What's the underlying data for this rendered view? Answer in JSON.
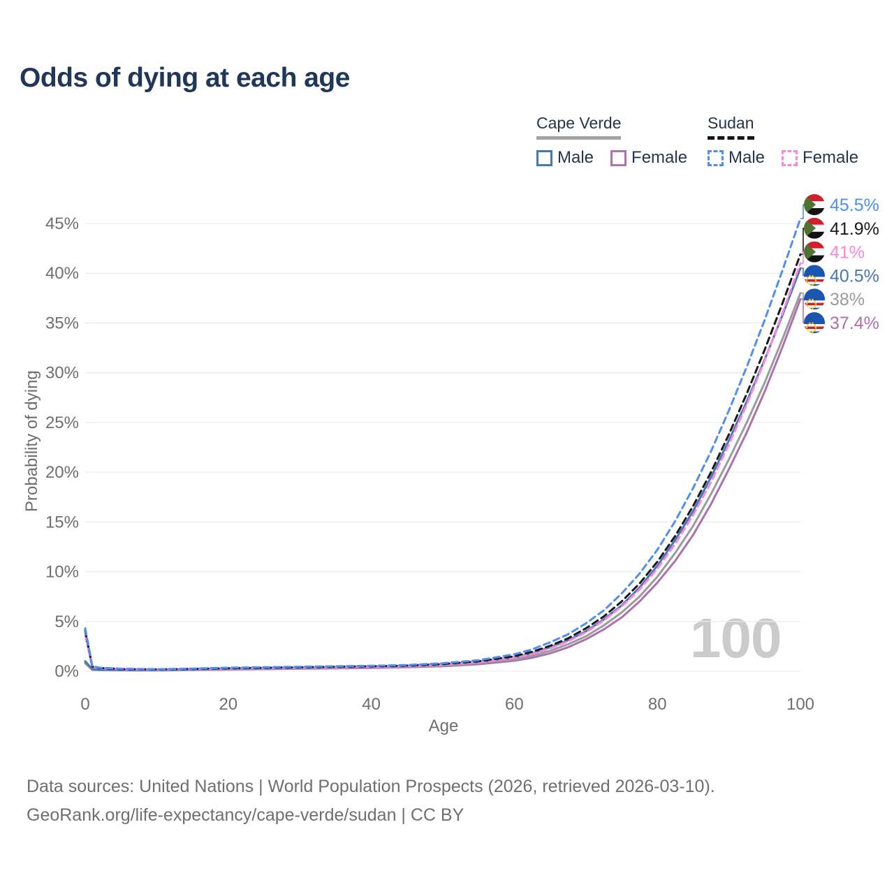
{
  "title": "Odds of dying at each age",
  "legend": {
    "groups": [
      {
        "label": "Cape Verde",
        "style": "solid",
        "underline_color": "#A3A3A3",
        "items": [
          {
            "label": "Male",
            "color": "#4577B3"
          },
          {
            "label": "Female",
            "color": "#AE74B0"
          }
        ]
      },
      {
        "label": "Sudan",
        "style": "dashed",
        "underline_color": "#141414",
        "items": [
          {
            "label": "Male",
            "color": "#4E8EF5"
          },
          {
            "label": "Female",
            "color": "#F985E0"
          }
        ]
      }
    ]
  },
  "chart_data": {
    "type": "line",
    "title": "Odds of dying at each age",
    "xlabel": "Age",
    "ylabel": "Probability of dying",
    "watermark": "100",
    "xlim": [
      0,
      100
    ],
    "ylim": [
      0,
      47
    ],
    "grid": true,
    "x_ticks": [
      0,
      20,
      40,
      60,
      80,
      100
    ],
    "y_ticks": [
      "0%",
      "5%",
      "10%",
      "15%",
      "20%",
      "25%",
      "30%",
      "35%",
      "40%",
      "45%"
    ],
    "x": [
      0,
      1,
      2,
      5,
      10,
      15,
      20,
      25,
      30,
      35,
      40,
      45,
      50,
      55,
      60,
      62.5,
      65,
      67.5,
      70,
      72.5,
      75,
      77.5,
      80,
      82.5,
      85,
      87.5,
      90,
      92.5,
      95,
      97.5,
      100
    ],
    "series": [
      {
        "name": "Cape Verde Female",
        "country": "Cape Verde",
        "sex": "Female",
        "flag": "cape-verde",
        "color": "#AC71AE",
        "dash": false,
        "end_label": "37.4%",
        "values": [
          0.8,
          0.14,
          0.11,
          0.09,
          0.08,
          0.12,
          0.17,
          0.21,
          0.25,
          0.29,
          0.33,
          0.4,
          0.5,
          0.7,
          1.05,
          1.35,
          1.8,
          2.4,
          3.2,
          4.2,
          5.4,
          7.0,
          8.9,
          11.1,
          13.7,
          16.8,
          20.3,
          24.0,
          28.1,
          32.6,
          37.4
        ]
      },
      {
        "name": "Cape Verde Both sexes",
        "country": "Cape Verde",
        "sex": "Both",
        "flag": "cape-verde",
        "color": "#9B9B9B",
        "dash": false,
        "end_label": "38%",
        "values": [
          0.9,
          0.17,
          0.13,
          0.11,
          0.1,
          0.15,
          0.22,
          0.27,
          0.3,
          0.35,
          0.4,
          0.47,
          0.6,
          0.82,
          1.2,
          1.55,
          2.05,
          2.7,
          3.5,
          4.6,
          5.9,
          7.5,
          9.5,
          11.9,
          14.6,
          17.8,
          21.3,
          25.0,
          29.0,
          33.4,
          38.0
        ]
      },
      {
        "name": "Cape Verde Male",
        "country": "Cape Verde",
        "sex": "Male",
        "flag": "cape-verde",
        "color": "#4577B3",
        "dash": false,
        "end_label": "40.5%",
        "values": [
          1.0,
          0.2,
          0.16,
          0.13,
          0.12,
          0.18,
          0.27,
          0.32,
          0.35,
          0.4,
          0.45,
          0.53,
          0.68,
          0.95,
          1.4,
          1.8,
          2.4,
          3.1,
          4.0,
          5.2,
          6.6,
          8.4,
          10.6,
          13.2,
          16.1,
          19.5,
          23.2,
          27.1,
          31.3,
          35.8,
          40.5
        ]
      },
      {
        "name": "Sudan Female",
        "country": "Sudan",
        "sex": "Female",
        "flag": "sudan",
        "color": "#F985E0",
        "dash": true,
        "end_label": "41%",
        "values": [
          3.6,
          0.4,
          0.3,
          0.2,
          0.15,
          0.21,
          0.27,
          0.32,
          0.36,
          0.4,
          0.45,
          0.52,
          0.65,
          0.9,
          1.35,
          1.75,
          2.3,
          3.0,
          3.9,
          5.1,
          6.5,
          8.2,
          10.3,
          12.8,
          15.7,
          19.0,
          22.8,
          26.8,
          31.2,
          36.0,
          41.0
        ]
      },
      {
        "name": "Sudan Both sexes",
        "country": "Sudan",
        "sex": "Both",
        "flag": "sudan",
        "color": "#1A1A1A",
        "dash": true,
        "end_label": "41.9%",
        "values": [
          4.1,
          0.45,
          0.32,
          0.22,
          0.18,
          0.24,
          0.3,
          0.35,
          0.4,
          0.45,
          0.5,
          0.57,
          0.72,
          1.0,
          1.5,
          1.95,
          2.55,
          3.3,
          4.3,
          5.5,
          7.0,
          8.8,
          11.0,
          13.6,
          16.6,
          20.0,
          23.8,
          27.9,
          32.3,
          37.0,
          41.9
        ]
      },
      {
        "name": "Sudan Male",
        "country": "Sudan",
        "sex": "Male",
        "flag": "sudan",
        "color": "#4E8EF5",
        "dash": true,
        "end_label": "45.5%",
        "values": [
          4.3,
          0.5,
          0.35,
          0.25,
          0.2,
          0.27,
          0.35,
          0.4,
          0.45,
          0.5,
          0.55,
          0.62,
          0.8,
          1.1,
          1.7,
          2.2,
          2.9,
          3.7,
          4.8,
          6.1,
          7.8,
          9.8,
          12.2,
          15.1,
          18.4,
          22.1,
          26.2,
          30.6,
          35.3,
          40.3,
          45.5
        ]
      }
    ]
  },
  "footer": {
    "line1": "Data sources: United Nations | World Population Prospects (2026, retrieved 2026-03-10).",
    "line2": "GeoRank.org/life-expectancy/cape-verde/sudan | CC BY"
  }
}
